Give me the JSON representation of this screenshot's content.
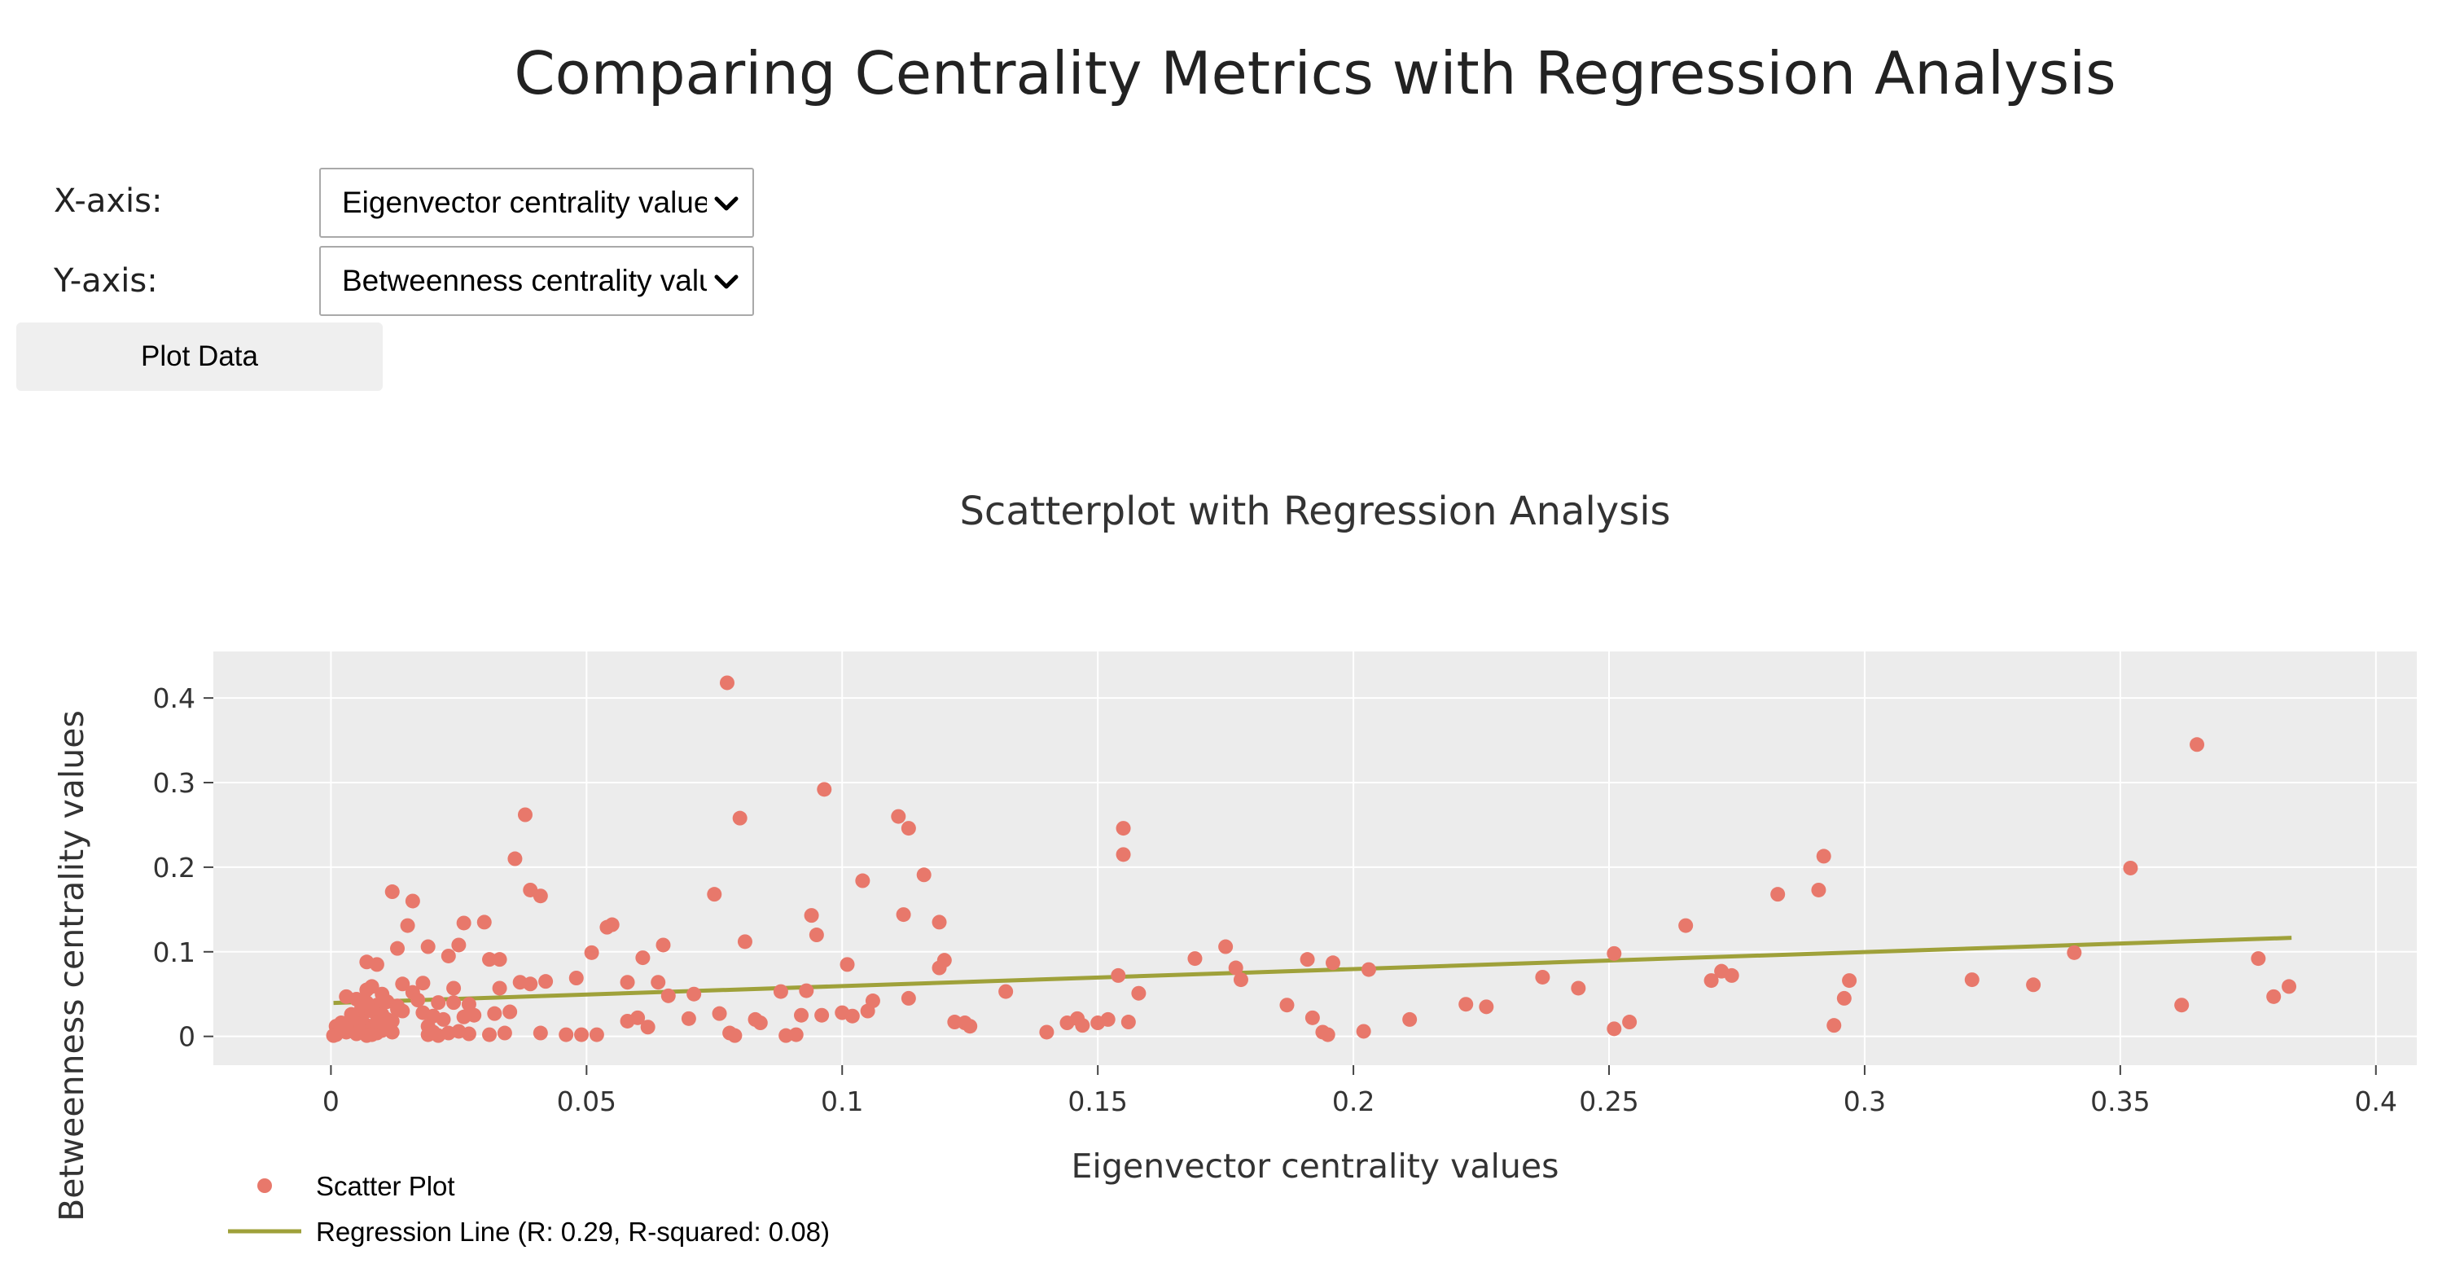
{
  "page": {
    "title": "Comparing Centrality Metrics with Regression Analysis"
  },
  "controls": {
    "x_axis_label": "X-axis:",
    "x_axis_selected": "Eigenvector centrality values",
    "y_axis_label": "Y-axis:",
    "y_axis_selected": "Betweenness centrality values",
    "plot_button": "Plot Data"
  },
  "colors": {
    "scatter": "#e8786b",
    "regression": "#9fa13a",
    "plot_bg": "#ececec",
    "grid": "#ffffff"
  },
  "chart_data": {
    "type": "scatter",
    "title": "Scatterplot with Regression Analysis",
    "xlabel": "Eigenvector centrality values",
    "ylabel": "Betweenness centrality values",
    "xlim": [
      -0.023,
      0.408
    ],
    "ylim": [
      -0.034,
      0.455
    ],
    "xticks": [
      0,
      0.05,
      0.1,
      0.15,
      0.2,
      0.25,
      0.3,
      0.35,
      0.4
    ],
    "xtick_labels": [
      "0",
      "0.05",
      "0.1",
      "0.15",
      "0.2",
      "0.25",
      "0.3",
      "0.35",
      "0.4"
    ],
    "yticks": [
      0,
      0.1,
      0.2,
      0.3,
      0.4
    ],
    "ytick_labels": [
      "0",
      "0.1",
      "0.2",
      "0.3",
      "0.4"
    ],
    "grid": true,
    "legend_position": "bottom-left",
    "series": [
      {
        "name": "Scatter Plot",
        "type": "scatter",
        "points": [
          [
            0.0775,
            0.418
          ],
          [
            0.365,
            0.345
          ],
          [
            0.0965,
            0.292
          ],
          [
            0.038,
            0.262
          ],
          [
            0.111,
            0.26
          ],
          [
            0.08,
            0.258
          ],
          [
            0.113,
            0.246
          ],
          [
            0.155,
            0.246
          ],
          [
            0.292,
            0.213
          ],
          [
            0.036,
            0.21
          ],
          [
            0.155,
            0.215
          ],
          [
            0.352,
            0.199
          ],
          [
            0.116,
            0.191
          ],
          [
            0.104,
            0.184
          ],
          [
            0.039,
            0.173
          ],
          [
            0.012,
            0.171
          ],
          [
            0.041,
            0.166
          ],
          [
            0.075,
            0.168
          ],
          [
            0.283,
            0.168
          ],
          [
            0.291,
            0.173
          ],
          [
            0.016,
            0.16
          ],
          [
            0.112,
            0.144
          ],
          [
            0.094,
            0.143
          ],
          [
            0.119,
            0.135
          ],
          [
            0.015,
            0.131
          ],
          [
            0.026,
            0.134
          ],
          [
            0.03,
            0.135
          ],
          [
            0.055,
            0.132
          ],
          [
            0.054,
            0.129
          ],
          [
            0.265,
            0.131
          ],
          [
            0.095,
            0.12
          ],
          [
            0.081,
            0.112
          ],
          [
            0.019,
            0.106
          ],
          [
            0.025,
            0.108
          ],
          [
            0.013,
            0.104
          ],
          [
            0.065,
            0.108
          ],
          [
            0.175,
            0.106
          ],
          [
            0.051,
            0.099
          ],
          [
            0.251,
            0.098
          ],
          [
            0.341,
            0.099
          ],
          [
            0.023,
            0.095
          ],
          [
            0.031,
            0.091
          ],
          [
            0.033,
            0.091
          ],
          [
            0.061,
            0.093
          ],
          [
            0.12,
            0.09
          ],
          [
            0.169,
            0.092
          ],
          [
            0.191,
            0.091
          ],
          [
            0.377,
            0.092
          ],
          [
            0.007,
            0.088
          ],
          [
            0.009,
            0.085
          ],
          [
            0.101,
            0.085
          ],
          [
            0.177,
            0.081
          ],
          [
            0.119,
            0.081
          ],
          [
            0.196,
            0.087
          ],
          [
            0.203,
            0.079
          ],
          [
            0.27,
            0.066
          ],
          [
            0.272,
            0.077
          ],
          [
            0.274,
            0.072
          ],
          [
            0.237,
            0.07
          ],
          [
            0.297,
            0.066
          ],
          [
            0.321,
            0.067
          ],
          [
            0.333,
            0.061
          ],
          [
            0.383,
            0.059
          ],
          [
            0.154,
            0.072
          ],
          [
            0.178,
            0.067
          ],
          [
            0.244,
            0.057
          ],
          [
            0.018,
            0.063
          ],
          [
            0.014,
            0.062
          ],
          [
            0.037,
            0.064
          ],
          [
            0.039,
            0.062
          ],
          [
            0.042,
            0.065
          ],
          [
            0.048,
            0.069
          ],
          [
            0.058,
            0.064
          ],
          [
            0.064,
            0.064
          ],
          [
            0.088,
            0.053
          ],
          [
            0.093,
            0.054
          ],
          [
            0.132,
            0.053
          ],
          [
            0.024,
            0.057
          ],
          [
            0.033,
            0.057
          ],
          [
            0.016,
            0.052
          ],
          [
            0.007,
            0.055
          ],
          [
            0.008,
            0.059
          ],
          [
            0.01,
            0.05
          ],
          [
            0.066,
            0.048
          ],
          [
            0.071,
            0.05
          ],
          [
            0.113,
            0.045
          ],
          [
            0.158,
            0.051
          ],
          [
            0.296,
            0.045
          ],
          [
            0.362,
            0.037
          ],
          [
            0.38,
            0.047
          ],
          [
            0.017,
            0.043
          ],
          [
            0.024,
            0.04
          ],
          [
            0.003,
            0.047
          ],
          [
            0.009,
            0.037
          ],
          [
            0.011,
            0.041
          ],
          [
            0.013,
            0.036
          ],
          [
            0.021,
            0.04
          ],
          [
            0.027,
            0.038
          ],
          [
            0.106,
            0.042
          ],
          [
            0.187,
            0.037
          ],
          [
            0.226,
            0.035
          ],
          [
            0.222,
            0.038
          ],
          [
            0.105,
            0.03
          ],
          [
            0.096,
            0.025
          ],
          [
            0.1,
            0.028
          ],
          [
            0.102,
            0.024
          ],
          [
            0.092,
            0.025
          ],
          [
            0.076,
            0.027
          ],
          [
            0.083,
            0.02
          ],
          [
            0.084,
            0.016
          ],
          [
            0.07,
            0.021
          ],
          [
            0.06,
            0.022
          ],
          [
            0.058,
            0.018
          ],
          [
            0.062,
            0.011
          ],
          [
            0.035,
            0.029
          ],
          [
            0.032,
            0.027
          ],
          [
            0.028,
            0.025
          ],
          [
            0.026,
            0.023
          ],
          [
            0.014,
            0.03
          ],
          [
            0.018,
            0.028
          ],
          [
            0.02,
            0.024
          ],
          [
            0.022,
            0.02
          ],
          [
            0.01,
            0.026
          ],
          [
            0.011,
            0.02
          ],
          [
            0.012,
            0.018
          ],
          [
            0.006,
            0.023
          ],
          [
            0.004,
            0.018
          ],
          [
            0.002,
            0.016
          ],
          [
            0.001,
            0.012
          ],
          [
            0.005,
            0.015
          ],
          [
            0.007,
            0.013
          ],
          [
            0.008,
            0.01
          ],
          [
            0.003,
            0.005
          ],
          [
            0.004,
            0.008
          ],
          [
            0.005,
            0.003
          ],
          [
            0.006,
            0.006
          ],
          [
            0.007,
            0.001
          ],
          [
            0.009,
            0.004
          ],
          [
            0.01,
            0.007
          ],
          [
            0.012,
            0.005
          ],
          [
            0.001,
            0.002
          ],
          [
            0.0005,
            0.001
          ],
          [
            0.002,
            0.009
          ],
          [
            0.003,
            0.012
          ],
          [
            0.008,
            0.002
          ],
          [
            0.011,
            0.01
          ],
          [
            0.019,
            0.012
          ],
          [
            0.021,
            0.001
          ],
          [
            0.023,
            0.004
          ],
          [
            0.025,
            0.006
          ],
          [
            0.027,
            0.003
          ],
          [
            0.031,
            0.002
          ],
          [
            0.034,
            0.004
          ],
          [
            0.041,
            0.004
          ],
          [
            0.046,
            0.002
          ],
          [
            0.049,
            0.002
          ],
          [
            0.052,
            0.002
          ],
          [
            0.078,
            0.004
          ],
          [
            0.079,
            0.001
          ],
          [
            0.089,
            0.001
          ],
          [
            0.091,
            0.002
          ],
          [
            0.122,
            0.017
          ],
          [
            0.124,
            0.016
          ],
          [
            0.125,
            0.012
          ],
          [
            0.14,
            0.005
          ],
          [
            0.144,
            0.016
          ],
          [
            0.146,
            0.021
          ],
          [
            0.147,
            0.013
          ],
          [
            0.15,
            0.016
          ],
          [
            0.152,
            0.02
          ],
          [
            0.156,
            0.017
          ],
          [
            0.192,
            0.022
          ],
          [
            0.194,
            0.005
          ],
          [
            0.195,
            0.002
          ],
          [
            0.202,
            0.006
          ],
          [
            0.211,
            0.02
          ],
          [
            0.251,
            0.009
          ],
          [
            0.254,
            0.017
          ],
          [
            0.294,
            0.013
          ],
          [
            0.019,
            0.002
          ],
          [
            0.02,
            0.005
          ],
          [
            0.006,
            0.034
          ],
          [
            0.008,
            0.03
          ],
          [
            0.004,
            0.026
          ],
          [
            0.013,
            0.032
          ],
          [
            0.009,
            0.017
          ],
          [
            0.005,
            0.044
          ],
          [
            0.011,
            0.015
          ],
          [
            0.007,
            0.04
          ]
        ]
      },
      {
        "name": "Regression Line (R: 0.29, R-squared: 0.08)",
        "type": "line",
        "points": [
          [
            0.0005,
            0.0395
          ],
          [
            0.3835,
            0.1165
          ]
        ]
      }
    ]
  }
}
